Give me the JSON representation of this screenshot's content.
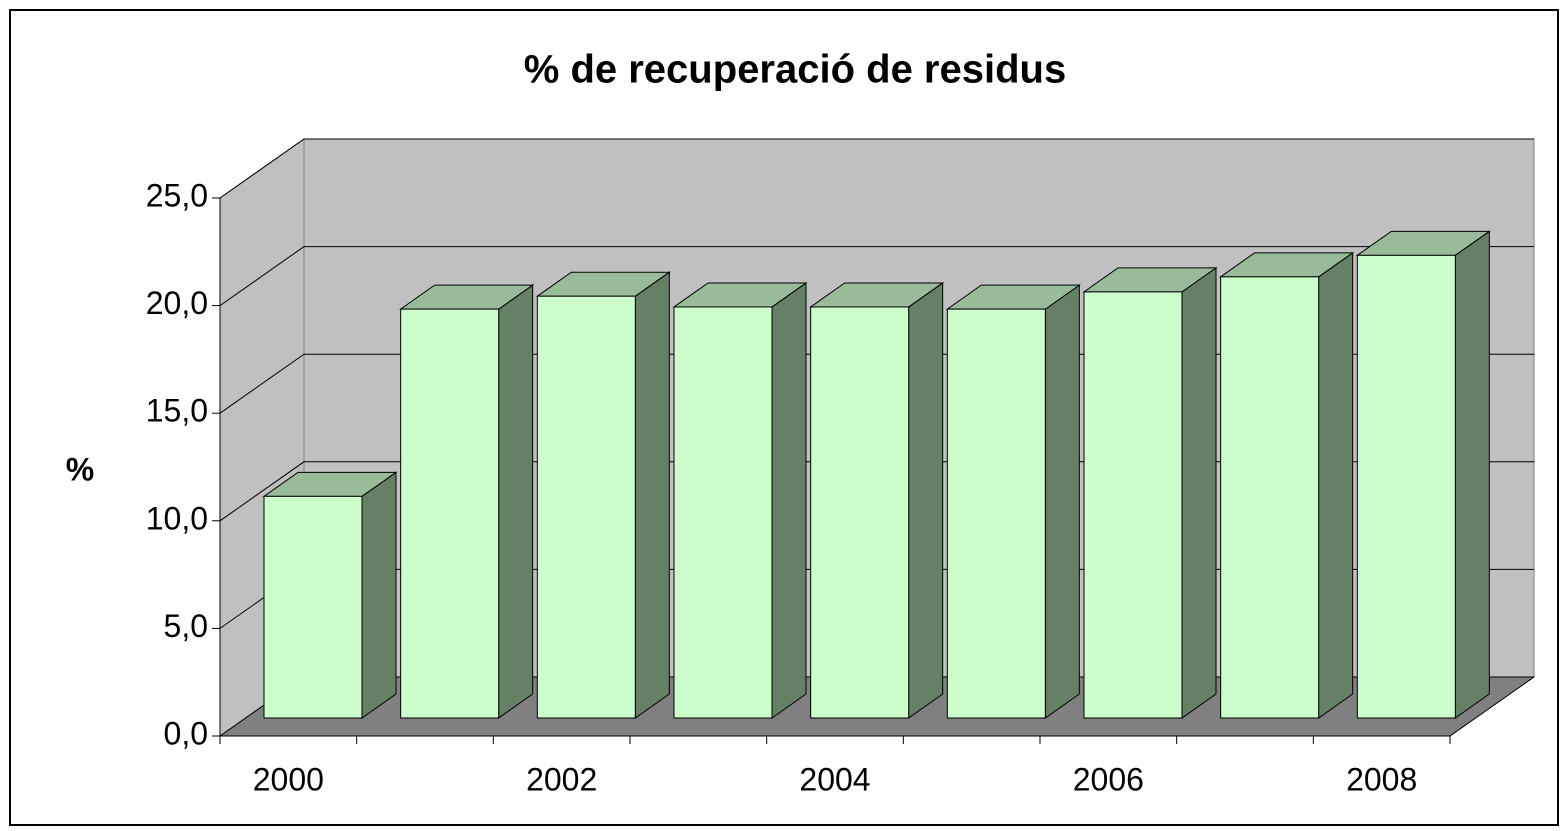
{
  "chart_data": {
    "type": "bar",
    "title": "% de recuperació de residus",
    "y_label": "%",
    "categories": [
      "2000",
      null,
      "2002",
      null,
      "2004",
      null,
      "2006",
      null,
      "2008"
    ],
    "values": [
      10.3,
      19.0,
      19.6,
      19.1,
      19.1,
      19.0,
      19.8,
      20.5,
      21.5
    ],
    "color": "#ccffcc",
    "ylim": [
      0,
      25
    ],
    "yticks": [
      {
        "value": 0,
        "label": "0,0"
      },
      {
        "value": 5,
        "label": "5,0"
      },
      {
        "value": 10,
        "label": "10,0"
      },
      {
        "value": 15,
        "label": "15,0"
      },
      {
        "value": 20,
        "label": "20,0"
      },
      {
        "value": 25,
        "label": "25,0"
      }
    ],
    "grid": true
  }
}
